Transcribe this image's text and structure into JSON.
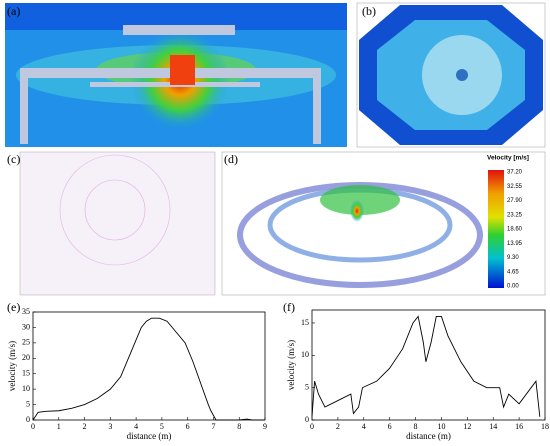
{
  "panels": [
    "(a)",
    "(b)",
    "(c)",
    "(d)",
    "(e)",
    "(f)"
  ],
  "colorbar": {
    "title": "Velocity [m/s]",
    "ticks": [
      "37.20",
      "32.55",
      "27.90",
      "23.25",
      "18.60",
      "13.95",
      "9.30",
      "4.65",
      "0.00"
    ]
  },
  "chart_data": [
    {
      "type": "line",
      "xlabel": "distance (m)",
      "ylabel": "velocity (m/s)",
      "color": "#000000",
      "x": [
        0,
        0.2,
        0.5,
        1,
        1.5,
        2,
        2.5,
        3,
        3.4,
        3.7,
        4,
        4.2,
        4.4,
        4.6,
        4.9,
        5.2,
        5.5,
        5.9,
        6.2,
        6.5,
        6.8,
        6.9,
        7.1,
        8,
        8.3,
        8.5,
        9
      ],
      "values": [
        0,
        2.5,
        2.8,
        3,
        3.8,
        5,
        7,
        10,
        14,
        20,
        26,
        30,
        32,
        33,
        33,
        32,
        29,
        25,
        19,
        12,
        5,
        3,
        0,
        0,
        0.3,
        0,
        0
      ],
      "xlim": [
        0,
        9
      ],
      "xticks": [
        0,
        1,
        2,
        3,
        4,
        5,
        6,
        7,
        8,
        9
      ],
      "ylim": [
        0,
        35
      ],
      "yticks": [
        0,
        5,
        10,
        15,
        20,
        25,
        30,
        35
      ]
    },
    {
      "type": "line",
      "xlabel": "distance (m)",
      "ylabel": "velocity (m/s)",
      "color": "#000000",
      "x": [
        0,
        0.2,
        0.5,
        1,
        2,
        3,
        3.2,
        3.6,
        3.9,
        5,
        6,
        7,
        7.8,
        8.2,
        8.6,
        8.8,
        9.2,
        9.6,
        10,
        10.5,
        11.5,
        12.5,
        13.5,
        14.5,
        14.8,
        15.2,
        16,
        17.3,
        17.6
      ],
      "values": [
        0.5,
        6,
        4,
        2,
        3,
        4,
        1,
        2,
        5,
        6,
        8,
        11,
        15,
        16,
        12,
        9,
        12,
        16,
        16,
        13,
        9,
        6,
        5,
        5,
        2,
        4,
        2.5,
        6,
        0.5
      ],
      "xlim": [
        0,
        18
      ],
      "xticks": [
        0,
        2,
        4,
        6,
        8,
        10,
        12,
        14,
        16,
        18
      ],
      "ylim": [
        0,
        17
      ],
      "yticks": [
        0,
        5,
        10,
        15
      ]
    }
  ]
}
